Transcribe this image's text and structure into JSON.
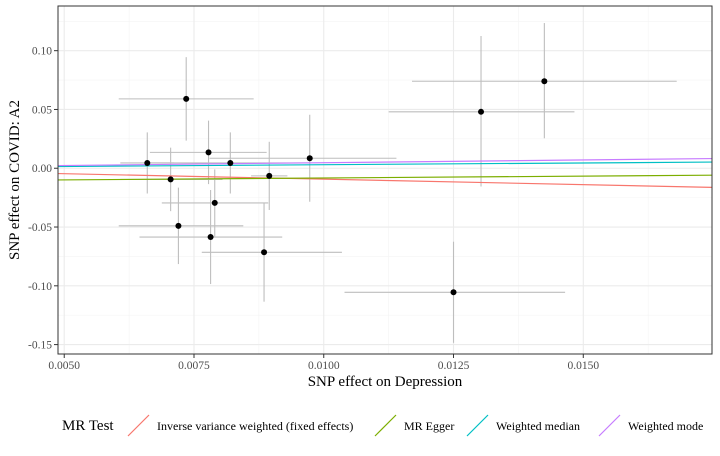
{
  "chart_data": {
    "type": "scatter",
    "xlabel": "SNP effect on Depression",
    "ylabel": "SNP effect on COVID: A2",
    "xlim": [
      0.00488,
      0.01748
    ],
    "ylim": [
      -0.158,
      0.138
    ],
    "x_ticks": [
      0.005,
      0.0075,
      0.01,
      0.0125,
      0.015
    ],
    "x_tick_labels": [
      "0.0050",
      "0.0075",
      "0.0100",
      "0.0125",
      "0.0150"
    ],
    "y_ticks": [
      -0.15,
      -0.1,
      -0.05,
      0.0,
      0.05,
      0.1
    ],
    "y_tick_labels": [
      "-0.15",
      "-0.10",
      "-0.05",
      "0.00",
      "0.05",
      "0.10"
    ],
    "grid": true,
    "points": [
      {
        "x": 0.0066,
        "y": 0.0045,
        "x_lo": 0.00608,
        "x_hi": 0.00712,
        "y_lo": -0.0215,
        "y_hi": 0.0305
      },
      {
        "x": 0.00705,
        "y": -0.0095,
        "x_lo": 0.00608,
        "x_hi": 0.00805,
        "y_lo": -0.0365,
        "y_hi": 0.0175
      },
      {
        "x": 0.0072,
        "y": -0.049,
        "x_lo": 0.00605,
        "x_hi": 0.00845,
        "y_lo": -0.0815,
        "y_hi": -0.0165
      },
      {
        "x": 0.00735,
        "y": 0.059,
        "x_lo": 0.00605,
        "x_hi": 0.00865,
        "y_lo": 0.0235,
        "y_hi": 0.0945
      },
      {
        "x": 0.00778,
        "y": 0.0135,
        "x_lo": 0.00665,
        "x_hi": 0.0089,
        "y_lo": -0.0135,
        "y_hi": 0.0405
      },
      {
        "x": 0.00782,
        "y": -0.0585,
        "x_lo": 0.00645,
        "x_hi": 0.0092,
        "y_lo": -0.0985,
        "y_hi": -0.0185
      },
      {
        "x": 0.0079,
        "y": -0.0295,
        "x_lo": 0.00688,
        "x_hi": 0.00893,
        "y_lo": -0.058,
        "y_hi": -0.001
      },
      {
        "x": 0.0082,
        "y": 0.0045,
        "x_lo": 0.00665,
        "x_hi": 0.00975,
        "y_lo": -0.0215,
        "y_hi": 0.0305
      },
      {
        "x": 0.00885,
        "y": -0.0715,
        "x_lo": 0.00765,
        "x_hi": 0.01035,
        "y_lo": -0.1135,
        "y_hi": -0.0295
      },
      {
        "x": 0.00895,
        "y": -0.0065,
        "x_lo": 0.0086,
        "x_hi": 0.0093,
        "y_lo": -0.0355,
        "y_hi": 0.0225
      },
      {
        "x": 0.00973,
        "y": 0.0085,
        "x_lo": 0.0078,
        "x_hi": 0.0114,
        "y_lo": -0.0285,
        "y_hi": 0.0455
      },
      {
        "x": 0.0125,
        "y": -0.1055,
        "x_lo": 0.0104,
        "x_hi": 0.01465,
        "y_lo": -0.1485,
        "y_hi": -0.0625
      },
      {
        "x": 0.01303,
        "y": 0.048,
        "x_lo": 0.01125,
        "x_hi": 0.01483,
        "y_lo": -0.0155,
        "y_hi": 0.1125
      },
      {
        "x": 0.01425,
        "y": 0.074,
        "x_lo": 0.0117,
        "x_hi": 0.0168,
        "y_lo": 0.0255,
        "y_hi": 0.1235
      }
    ],
    "lines": [
      {
        "name": "Inverse variance weighted (fixed effects)",
        "color": "#F8766D",
        "intercept": 0.0,
        "slope": -0.93
      },
      {
        "name": "MR Egger",
        "color": "#7CAE00",
        "intercept": -0.0115,
        "slope": 0.32
      },
      {
        "name": "Weighted median",
        "color": "#00BFC4",
        "intercept": 0.0,
        "slope": 0.3
      },
      {
        "name": "Weighted mode",
        "color": "#C77CFF",
        "intercept": 0.0,
        "slope": 0.47
      }
    ],
    "legend": {
      "title": "MR Test",
      "position": "bottom",
      "entries": [
        "Inverse variance weighted (fixed effects)",
        "MR Egger",
        "Weighted median",
        "Weighted mode"
      ]
    },
    "colors": {
      "point": "#000000",
      "errorbar": "#BEBEBE",
      "grid_major": "#EBEBEB",
      "grid_minor": "#F4F4F4",
      "panel_border": "#333333"
    }
  }
}
